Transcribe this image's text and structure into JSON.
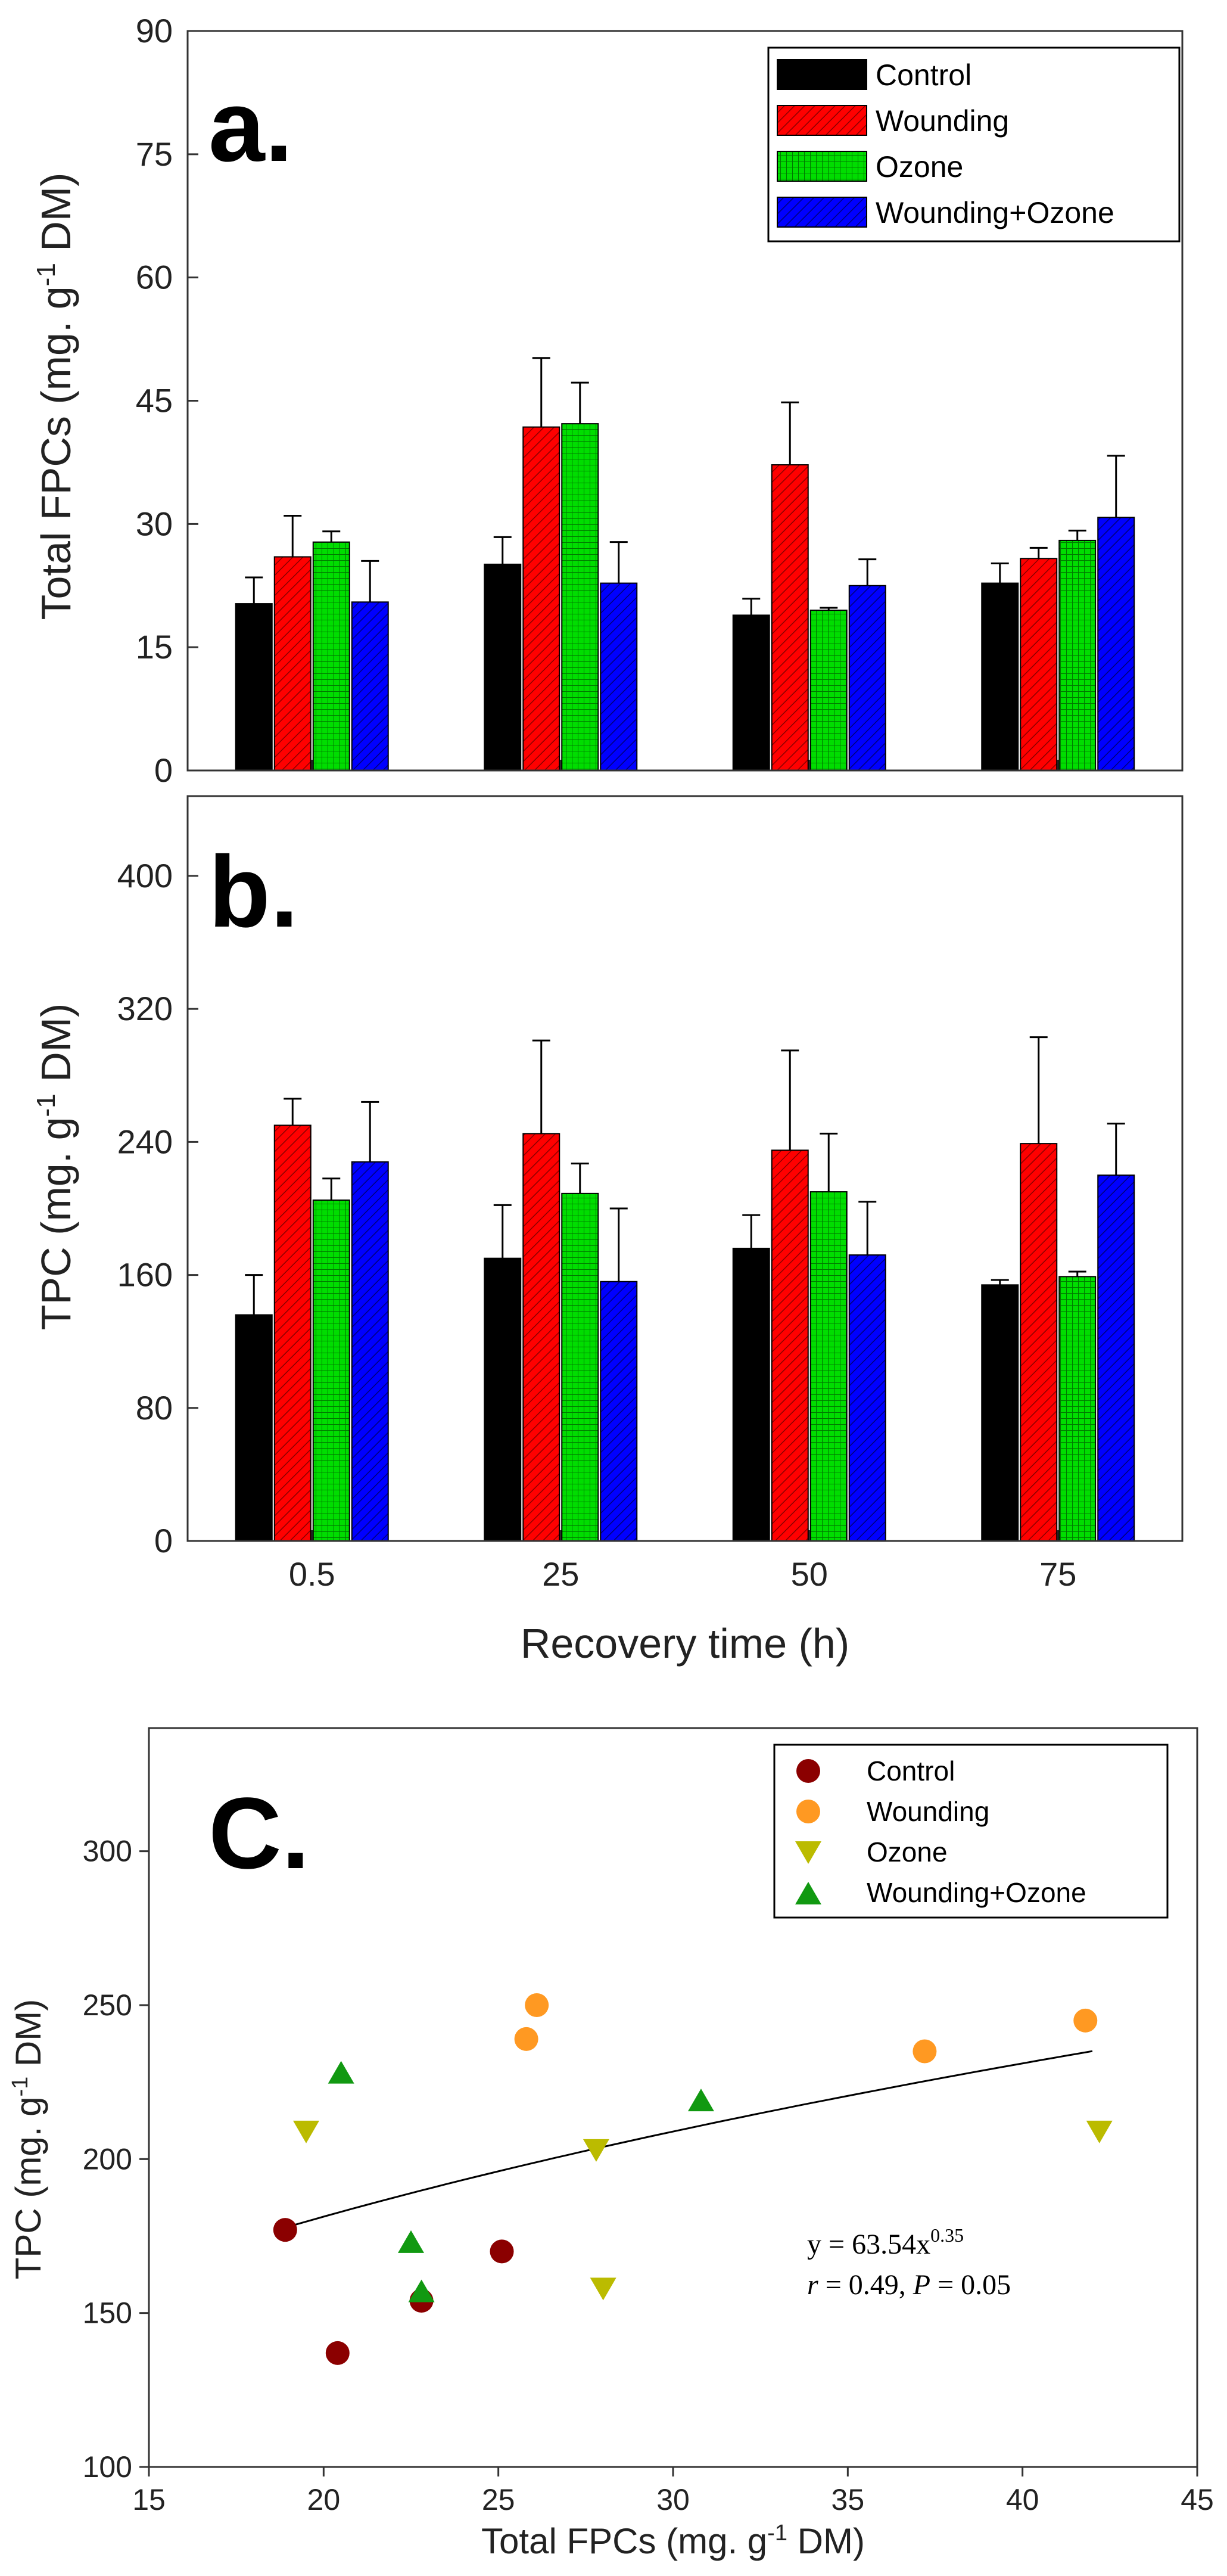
{
  "chart_data": [
    {
      "type": "bar",
      "panel_label": "a.",
      "xlabel": "",
      "ylabel_main": "Total FPCs (mg. g",
      "ylabel_sup": "-1",
      "ylabel_end": " DM)",
      "ylim": [
        0,
        90
      ],
      "yticks": [
        0,
        15,
        30,
        45,
        60,
        75,
        90
      ],
      "categories": [
        "0.5",
        "25",
        "50",
        "75"
      ],
      "show_xtick_labels": false,
      "legend_position": "top-right",
      "series": [
        {
          "name": "Control",
          "color": "#000000",
          "pattern": "solid",
          "values": [
            20.3,
            25.1,
            18.9,
            22.8
          ],
          "errors": [
            3.2,
            3.3,
            2.0,
            2.4
          ]
        },
        {
          "name": "Wounding",
          "color": "#ff0000",
          "pattern": "hatch",
          "values": [
            26.0,
            41.8,
            37.2,
            25.8
          ],
          "errors": [
            5.0,
            8.4,
            7.6,
            1.3
          ]
        },
        {
          "name": "Ozone",
          "color": "#00dd00",
          "pattern": "grid",
          "values": [
            27.8,
            42.2,
            19.5,
            28.0
          ],
          "errors": [
            1.3,
            5.0,
            0.3,
            1.2
          ]
        },
        {
          "name": "Wounding+Ozone",
          "color": "#0000ff",
          "pattern": "hatch",
          "values": [
            20.5,
            22.8,
            22.5,
            30.8
          ],
          "errors": [
            5.0,
            5.0,
            3.2,
            7.5
          ]
        }
      ]
    },
    {
      "type": "bar",
      "panel_label": "b.",
      "xlabel": "Recovery time (h)",
      "ylabel_main": "TPC (mg. g",
      "ylabel_sup": "-1",
      "ylabel_end": " DM)",
      "ylim": [
        0,
        448
      ],
      "yticks": [
        0,
        80,
        160,
        240,
        320,
        400
      ],
      "categories": [
        "0.5",
        "25",
        "50",
        "75"
      ],
      "show_xtick_labels": true,
      "series": [
        {
          "name": "Control",
          "color": "#000000",
          "pattern": "solid",
          "values": [
            136,
            170,
            176,
            154
          ],
          "errors": [
            24,
            32,
            20,
            3
          ]
        },
        {
          "name": "Wounding",
          "color": "#ff0000",
          "pattern": "hatch",
          "values": [
            250,
            245,
            235,
            239
          ],
          "errors": [
            16,
            56,
            60,
            64
          ]
        },
        {
          "name": "Ozone",
          "color": "#00dd00",
          "pattern": "grid",
          "values": [
            205,
            209,
            210,
            159
          ],
          "errors": [
            13,
            18,
            35,
            3
          ]
        },
        {
          "name": "Wounding+Ozone",
          "color": "#0000ff",
          "pattern": "hatch",
          "values": [
            228,
            156,
            172,
            220
          ],
          "errors": [
            36,
            44,
            32,
            31
          ]
        }
      ]
    },
    {
      "type": "scatter",
      "panel_label": "C.",
      "xlabel_main": "Total FPCs (mg. g",
      "xlabel_sup": "-1",
      "xlabel_end": " DM)",
      "ylabel_main": "TPC (mg. g",
      "ylabel_sup": "-1",
      "ylabel_end": " DM)",
      "xlim": [
        15,
        45
      ],
      "ylim": [
        100,
        340
      ],
      "xticks": [
        15,
        20,
        25,
        30,
        35,
        40,
        45
      ],
      "yticks": [
        100,
        150,
        200,
        250,
        300
      ],
      "legend_position": "top-right",
      "series": [
        {
          "name": "Control",
          "marker": "circle",
          "color": "#8b0000",
          "points": [
            [
              18.9,
              177
            ],
            [
              20.4,
              137
            ],
            [
              22.8,
              154
            ],
            [
              25.1,
              170
            ]
          ]
        },
        {
          "name": "Wounding",
          "marker": "circle",
          "color": "#ff9922",
          "points": [
            [
              25.8,
              239
            ],
            [
              26.1,
              250
            ],
            [
              37.2,
              235
            ],
            [
              41.8,
              245
            ]
          ]
        },
        {
          "name": "Ozone",
          "marker": "triangle-down",
          "color": "#bbbb00",
          "points": [
            [
              19.5,
              209
            ],
            [
              27.8,
              203
            ],
            [
              28.0,
              158
            ],
            [
              42.2,
              209
            ]
          ]
        },
        {
          "name": "Wounding+Ozone",
          "marker": "triangle-up",
          "color": "#119911",
          "points": [
            [
              20.5,
              228
            ],
            [
              22.5,
              173
            ],
            [
              22.8,
              157
            ],
            [
              30.8,
              219
            ]
          ]
        }
      ],
      "fit": {
        "a": 63.54,
        "b": 0.35,
        "x_from": 18.9,
        "x_to": 42.0
      },
      "equation": {
        "lhs": "y = 63.54x",
        "exponent": "0.35",
        "stats_r_symbol": "r",
        "stats_r_text": " = 0.49,  ",
        "stats_p_symbol": "P",
        "stats_p_text": " = 0.05"
      }
    }
  ]
}
